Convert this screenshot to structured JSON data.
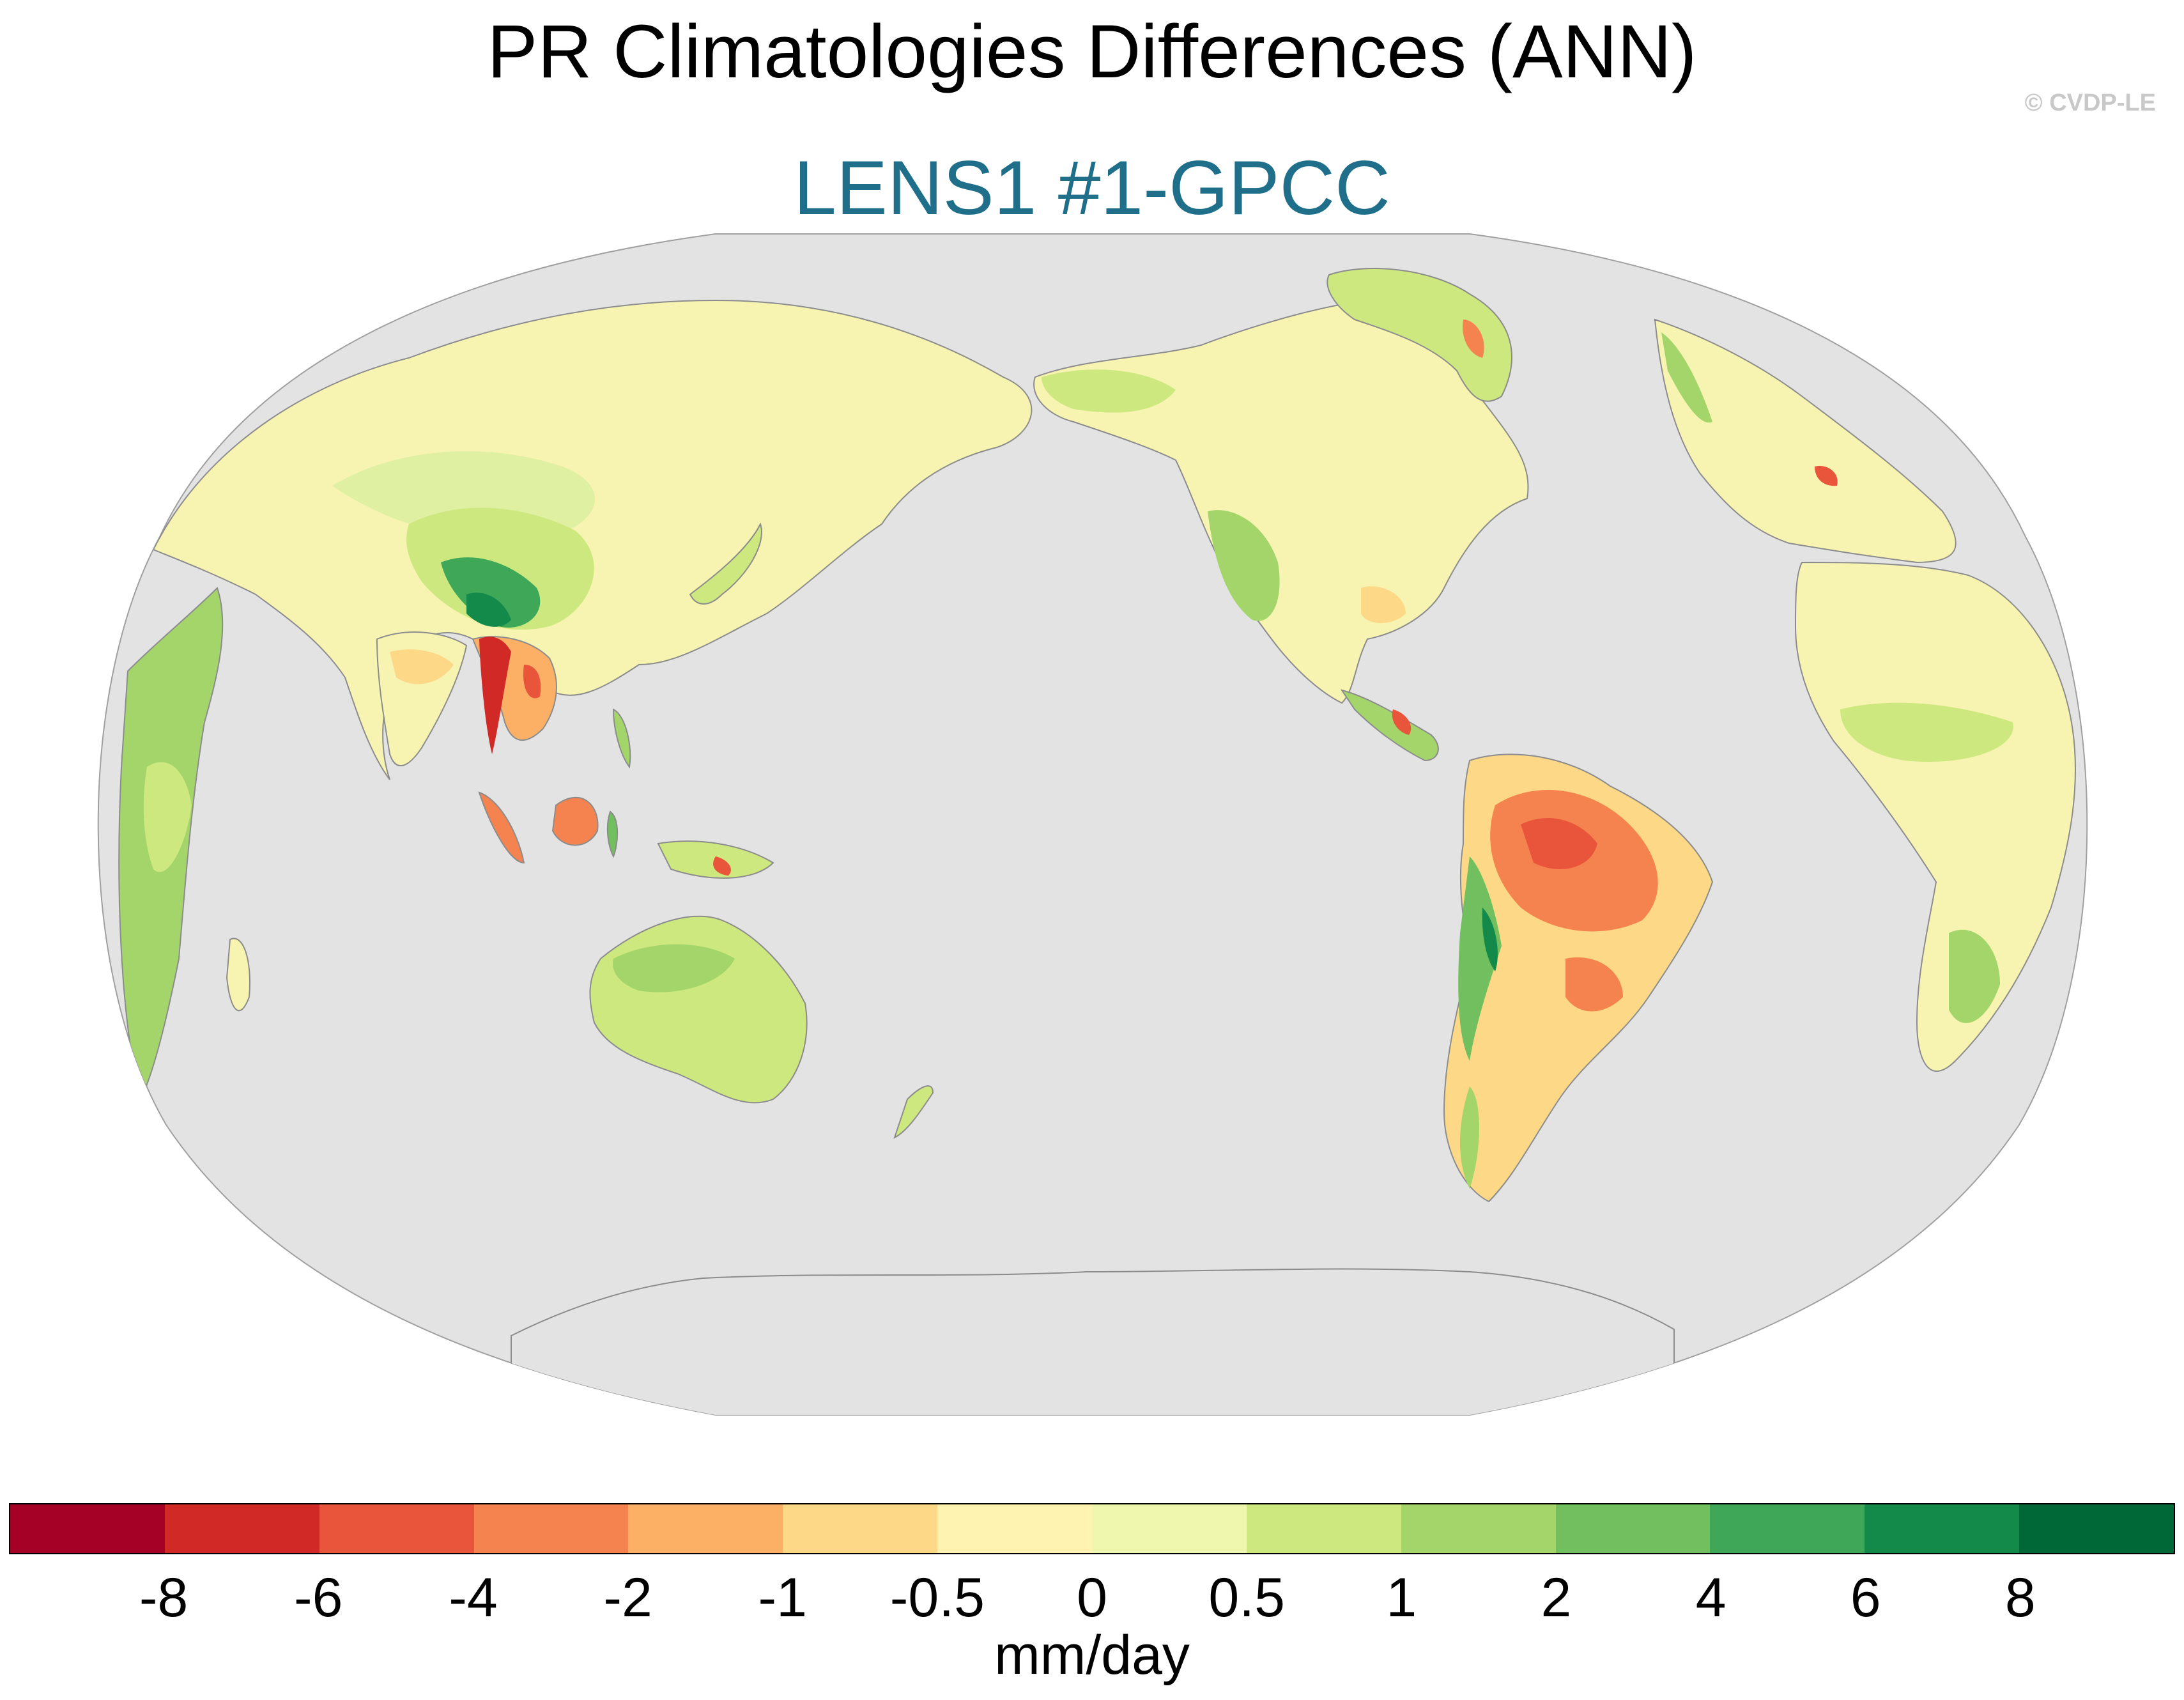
{
  "title": "PR Climatologies Differences (ANN)",
  "subtitle": "LENS1 #1-GPCC",
  "copyright": "© CVDP-LE",
  "colorbar": {
    "units": "mm/day",
    "tick_labels": [
      "-8",
      "-6",
      "-4",
      "-2",
      "-1",
      "-0.5",
      "0",
      "0.5",
      "1",
      "2",
      "4",
      "6",
      "8"
    ],
    "colors": [
      "#a50026",
      "#d12a26",
      "#e8553a",
      "#f5834f",
      "#fbb066",
      "#fdd886",
      "#fef3b0",
      "#eef7ad",
      "#cde87e",
      "#a3d56a",
      "#72bf5f",
      "#3fa758",
      "#148a4a",
      "#006837"
    ]
  },
  "map": {
    "projection": "Robinson",
    "central_longitude": 180,
    "ocean_color": "#e3e3e3",
    "coastline_color": "#8c8c8c"
  }
}
